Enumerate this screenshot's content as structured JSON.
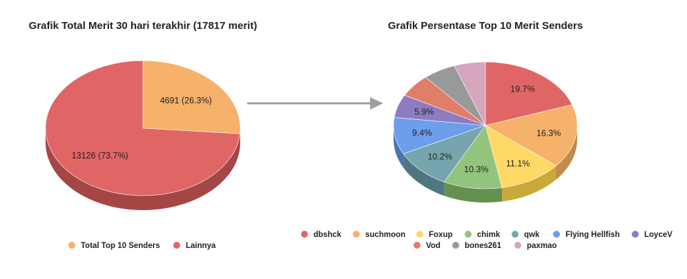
{
  "chart_data": [
    {
      "type": "pie",
      "style": "3d",
      "title": "Grafik Total Merit 30 hari terakhir (17817 merit)",
      "slices": [
        {
          "name": "Total Top 10 Senders",
          "value": 4691,
          "label": "4691 (26.3%)",
          "color": "#f6b26b",
          "side": "#c48a4c"
        },
        {
          "name": "Lainnya",
          "value": 13126,
          "label": "13126 (73.7%)",
          "color": "#e06666",
          "side": "#a54646"
        }
      ],
      "legend_position": "bottom"
    },
    {
      "type": "pie",
      "style": "3d",
      "title": "Grafik Persentase Top 10 Merit Senders",
      "slices": [
        {
          "name": "dbshck",
          "value": 19.7,
          "label": "19.7%",
          "color": "#e06666",
          "side": "#a54646"
        },
        {
          "name": "suchmoon",
          "value": 16.3,
          "label": "16.3%",
          "color": "#f6b26b",
          "side": "#c48a4c"
        },
        {
          "name": "Foxup",
          "value": 11.1,
          "label": "11.1%",
          "color": "#ffd966",
          "side": "#c9a93a"
        },
        {
          "name": "chimk",
          "value": 10.3,
          "label": "10.3%",
          "color": "#93c47d",
          "side": "#66904f"
        },
        {
          "name": "qwk",
          "value": 10.2,
          "label": "10.2%",
          "color": "#76a5af",
          "side": "#4f7780"
        },
        {
          "name": "Flying Hellfish",
          "value": 9.4,
          "label": "9.4%",
          "color": "#6d9eeb",
          "side": "#4a73b5"
        },
        {
          "name": "LoyceV",
          "value": 5.9,
          "label": "5.9%",
          "color": "#8e7cc3",
          "side": "#65578f"
        },
        {
          "name": "Vod",
          "value": 5.8,
          "label": "",
          "color": "#e07e6a",
          "side": "#a85a4a"
        },
        {
          "name": "bones261",
          "value": 5.8,
          "label": "",
          "color": "#999999",
          "side": "#6e6e6e"
        },
        {
          "name": "paxmao",
          "value": 5.5,
          "label": "",
          "color": "#d5a6bd",
          "side": "#a07889"
        }
      ],
      "legend_position": "bottom"
    }
  ]
}
